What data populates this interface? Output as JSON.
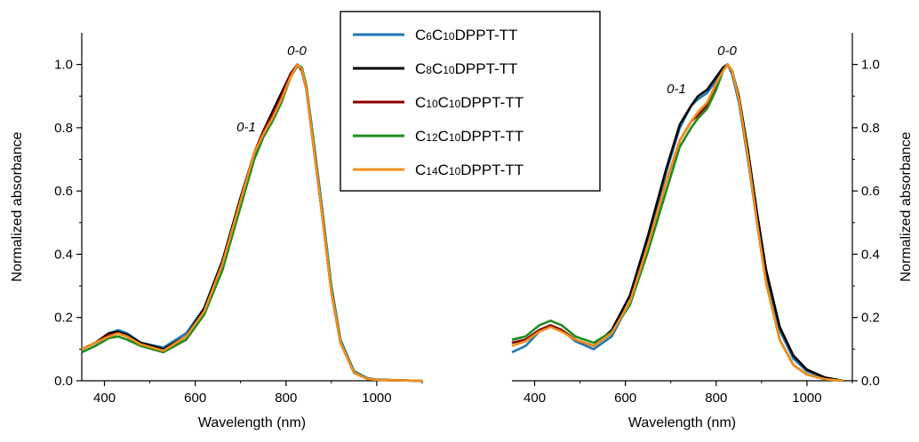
{
  "chart_data": [
    {
      "type": "line",
      "panel": "left",
      "xlabel": "Wavelength (nm)",
      "ylabel": "Normalized absorbance",
      "xlim": [
        350,
        1100
      ],
      "ylim": [
        0,
        1.1
      ],
      "xticks": [
        "400",
        "600",
        "800",
        "1000"
      ],
      "yticks": [
        "0.0",
        "0.2",
        "0.4",
        "0.6",
        "0.8",
        "1.0"
      ],
      "annotations": [
        "0-0",
        "0-1"
      ],
      "series": [
        {
          "legend": "C6C10DPPT-TT",
          "color": "#1f77b4",
          "x": [
            350,
            380,
            410,
            430,
            450,
            480,
            530,
            580,
            620,
            660,
            700,
            730,
            750,
            770,
            790,
            810,
            825,
            835,
            845,
            860,
            880,
            900,
            920,
            950,
            980,
            1000,
            1050,
            1100
          ],
          "y": [
            0.1,
            0.12,
            0.15,
            0.16,
            0.15,
            0.12,
            0.105,
            0.15,
            0.23,
            0.38,
            0.57,
            0.71,
            0.78,
            0.84,
            0.9,
            0.97,
            1.0,
            0.99,
            0.93,
            0.77,
            0.54,
            0.3,
            0.13,
            0.03,
            0.008,
            0.004,
            0.001,
            0.0
          ]
        },
        {
          "legend": "C8C10DPPT-TT",
          "color": "#000000",
          "x": [
            350,
            380,
            410,
            430,
            450,
            480,
            530,
            580,
            620,
            660,
            700,
            730,
            750,
            770,
            790,
            810,
            825,
            835,
            845,
            860,
            880,
            900,
            920,
            950,
            980,
            1000,
            1050,
            1100
          ],
          "y": [
            0.1,
            0.12,
            0.15,
            0.155,
            0.145,
            0.12,
            0.1,
            0.14,
            0.23,
            0.38,
            0.58,
            0.72,
            0.79,
            0.85,
            0.91,
            0.97,
            1.0,
            0.98,
            0.92,
            0.75,
            0.52,
            0.28,
            0.12,
            0.025,
            0.006,
            0.003,
            0.001,
            0.0
          ]
        },
        {
          "legend": "C10C10DPPT-TT",
          "color": "#8b0000",
          "x": [
            350,
            380,
            410,
            430,
            450,
            480,
            530,
            580,
            620,
            660,
            700,
            730,
            750,
            770,
            790,
            810,
            825,
            835,
            845,
            860,
            880,
            900,
            920,
            950,
            980,
            1000,
            1050,
            1100
          ],
          "y": [
            0.1,
            0.12,
            0.145,
            0.15,
            0.14,
            0.115,
            0.095,
            0.14,
            0.22,
            0.37,
            0.57,
            0.72,
            0.79,
            0.84,
            0.9,
            0.97,
            1.0,
            0.98,
            0.92,
            0.75,
            0.52,
            0.28,
            0.12,
            0.025,
            0.006,
            0.003,
            0.001,
            0.0
          ]
        },
        {
          "legend": "C12C10DPPT-TT",
          "color": "#1e8c1e",
          "x": [
            350,
            380,
            410,
            430,
            450,
            480,
            530,
            580,
            620,
            660,
            700,
            730,
            750,
            770,
            790,
            810,
            825,
            835,
            845,
            860,
            880,
            900,
            920,
            950,
            980,
            1000,
            1050,
            1100
          ],
          "y": [
            0.09,
            0.11,
            0.135,
            0.14,
            0.13,
            0.11,
            0.09,
            0.13,
            0.21,
            0.35,
            0.55,
            0.7,
            0.77,
            0.82,
            0.88,
            0.96,
            0.995,
            0.99,
            0.93,
            0.76,
            0.53,
            0.29,
            0.125,
            0.027,
            0.007,
            0.003,
            0.001,
            0.0
          ]
        },
        {
          "legend": "C14C10DPPT-TT",
          "color": "#f28e1c",
          "x": [
            350,
            380,
            410,
            430,
            450,
            480,
            530,
            580,
            620,
            660,
            700,
            730,
            750,
            770,
            790,
            810,
            825,
            835,
            845,
            860,
            880,
            900,
            920,
            950,
            980,
            1000,
            1050,
            1100
          ],
          "y": [
            0.1,
            0.12,
            0.14,
            0.15,
            0.14,
            0.115,
            0.095,
            0.14,
            0.22,
            0.37,
            0.57,
            0.72,
            0.78,
            0.83,
            0.89,
            0.96,
            1.0,
            0.985,
            0.92,
            0.75,
            0.52,
            0.28,
            0.12,
            0.025,
            0.006,
            0.003,
            0.001,
            0.0
          ]
        }
      ]
    },
    {
      "type": "line",
      "panel": "right",
      "xlabel": "Wavelength (nm)",
      "ylabel": "Normalized absorbance",
      "xlim": [
        350,
        1100
      ],
      "ylim": [
        0,
        1.1
      ],
      "xticks": [
        "400",
        "600",
        "800",
        "1000"
      ],
      "yticks": [
        "0.0",
        "0.2",
        "0.4",
        "0.6",
        "0.8",
        "1.0"
      ],
      "annotations": [
        "0-0",
        "0-1"
      ],
      "series": [
        {
          "legend": "C6C10DPPT-TT",
          "color": "#1f77b4",
          "x": [
            350,
            380,
            410,
            435,
            460,
            490,
            530,
            570,
            610,
            650,
            690,
            720,
            745,
            760,
            780,
            800,
            815,
            825,
            835,
            850,
            870,
            890,
            910,
            940,
            970,
            1000,
            1040,
            1080
          ],
          "y": [
            0.09,
            0.11,
            0.155,
            0.175,
            0.16,
            0.125,
            0.1,
            0.14,
            0.25,
            0.44,
            0.66,
            0.8,
            0.87,
            0.89,
            0.91,
            0.95,
            0.985,
            1.0,
            0.97,
            0.88,
            0.7,
            0.5,
            0.33,
            0.16,
            0.07,
            0.03,
            0.01,
            0.0
          ]
        },
        {
          "legend": "C8C10DPPT-TT",
          "color": "#000000",
          "x": [
            350,
            380,
            410,
            435,
            460,
            490,
            530,
            570,
            610,
            650,
            690,
            720,
            745,
            760,
            780,
            800,
            815,
            825,
            835,
            850,
            870,
            890,
            910,
            940,
            970,
            1000,
            1040,
            1080
          ],
          "y": [
            0.12,
            0.13,
            0.16,
            0.175,
            0.16,
            0.13,
            0.11,
            0.16,
            0.27,
            0.46,
            0.67,
            0.81,
            0.87,
            0.9,
            0.92,
            0.96,
            0.99,
            1.0,
            0.98,
            0.9,
            0.73,
            0.53,
            0.35,
            0.17,
            0.08,
            0.035,
            0.01,
            0.0
          ]
        },
        {
          "legend": "C10C10DPPT-TT",
          "color": "#8b0000",
          "x": [
            350,
            380,
            410,
            435,
            460,
            490,
            530,
            570,
            610,
            650,
            690,
            720,
            745,
            760,
            780,
            800,
            815,
            825,
            835,
            850,
            870,
            890,
            910,
            940,
            970,
            1000,
            1040,
            1080
          ],
          "y": [
            0.12,
            0.13,
            0.16,
            0.175,
            0.16,
            0.13,
            0.11,
            0.15,
            0.25,
            0.43,
            0.63,
            0.76,
            0.82,
            0.84,
            0.87,
            0.93,
            0.98,
            1.0,
            0.98,
            0.89,
            0.71,
            0.5,
            0.31,
            0.13,
            0.05,
            0.02,
            0.005,
            0.0
          ]
        },
        {
          "legend": "C12C10DPPT-TT",
          "color": "#1e8c1e",
          "x": [
            350,
            380,
            410,
            435,
            460,
            490,
            530,
            570,
            610,
            650,
            690,
            720,
            745,
            760,
            780,
            800,
            815,
            825,
            835,
            850,
            870,
            890,
            910,
            940,
            970,
            1000,
            1040,
            1080
          ],
          "y": [
            0.13,
            0.14,
            0.175,
            0.19,
            0.175,
            0.14,
            0.12,
            0.155,
            0.24,
            0.41,
            0.6,
            0.74,
            0.8,
            0.83,
            0.86,
            0.92,
            0.98,
            1.0,
            0.98,
            0.89,
            0.71,
            0.5,
            0.31,
            0.13,
            0.05,
            0.02,
            0.005,
            0.0
          ]
        },
        {
          "legend": "C14C10DPPT-TT",
          "color": "#f28e1c",
          "x": [
            350,
            380,
            410,
            435,
            460,
            490,
            530,
            570,
            610,
            650,
            690,
            720,
            745,
            760,
            780,
            800,
            815,
            825,
            835,
            850,
            870,
            890,
            910,
            940,
            970,
            1000,
            1040,
            1080
          ],
          "y": [
            0.11,
            0.125,
            0.155,
            0.17,
            0.155,
            0.13,
            0.11,
            0.15,
            0.25,
            0.43,
            0.63,
            0.76,
            0.82,
            0.85,
            0.88,
            0.94,
            0.98,
            1.0,
            0.98,
            0.89,
            0.71,
            0.5,
            0.31,
            0.13,
            0.05,
            0.02,
            0.005,
            0.0
          ]
        }
      ]
    }
  ],
  "legend": {
    "placement": "top-center",
    "entries": [
      {
        "prefix": "C",
        "sub1": "6",
        "mid": "C",
        "sub2": "10",
        "suffix": "DPPT-TT",
        "color": "#1f77b4"
      },
      {
        "prefix": "C",
        "sub1": "8",
        "mid": "C",
        "sub2": "10",
        "suffix": "DPPT-TT",
        "color": "#000000"
      },
      {
        "prefix": "C",
        "sub1": "10",
        "mid": "C",
        "sub2": "10",
        "suffix": "DPPT-TT",
        "color": "#8b0000"
      },
      {
        "prefix": "C",
        "sub1": "12",
        "mid": "C",
        "sub2": "10",
        "suffix": "DPPT-TT",
        "color": "#1e8c1e"
      },
      {
        "prefix": "C",
        "sub1": "14",
        "mid": "C",
        "sub2": "10",
        "suffix": "DPPT-TT",
        "color": "#f28e1c"
      }
    ]
  }
}
